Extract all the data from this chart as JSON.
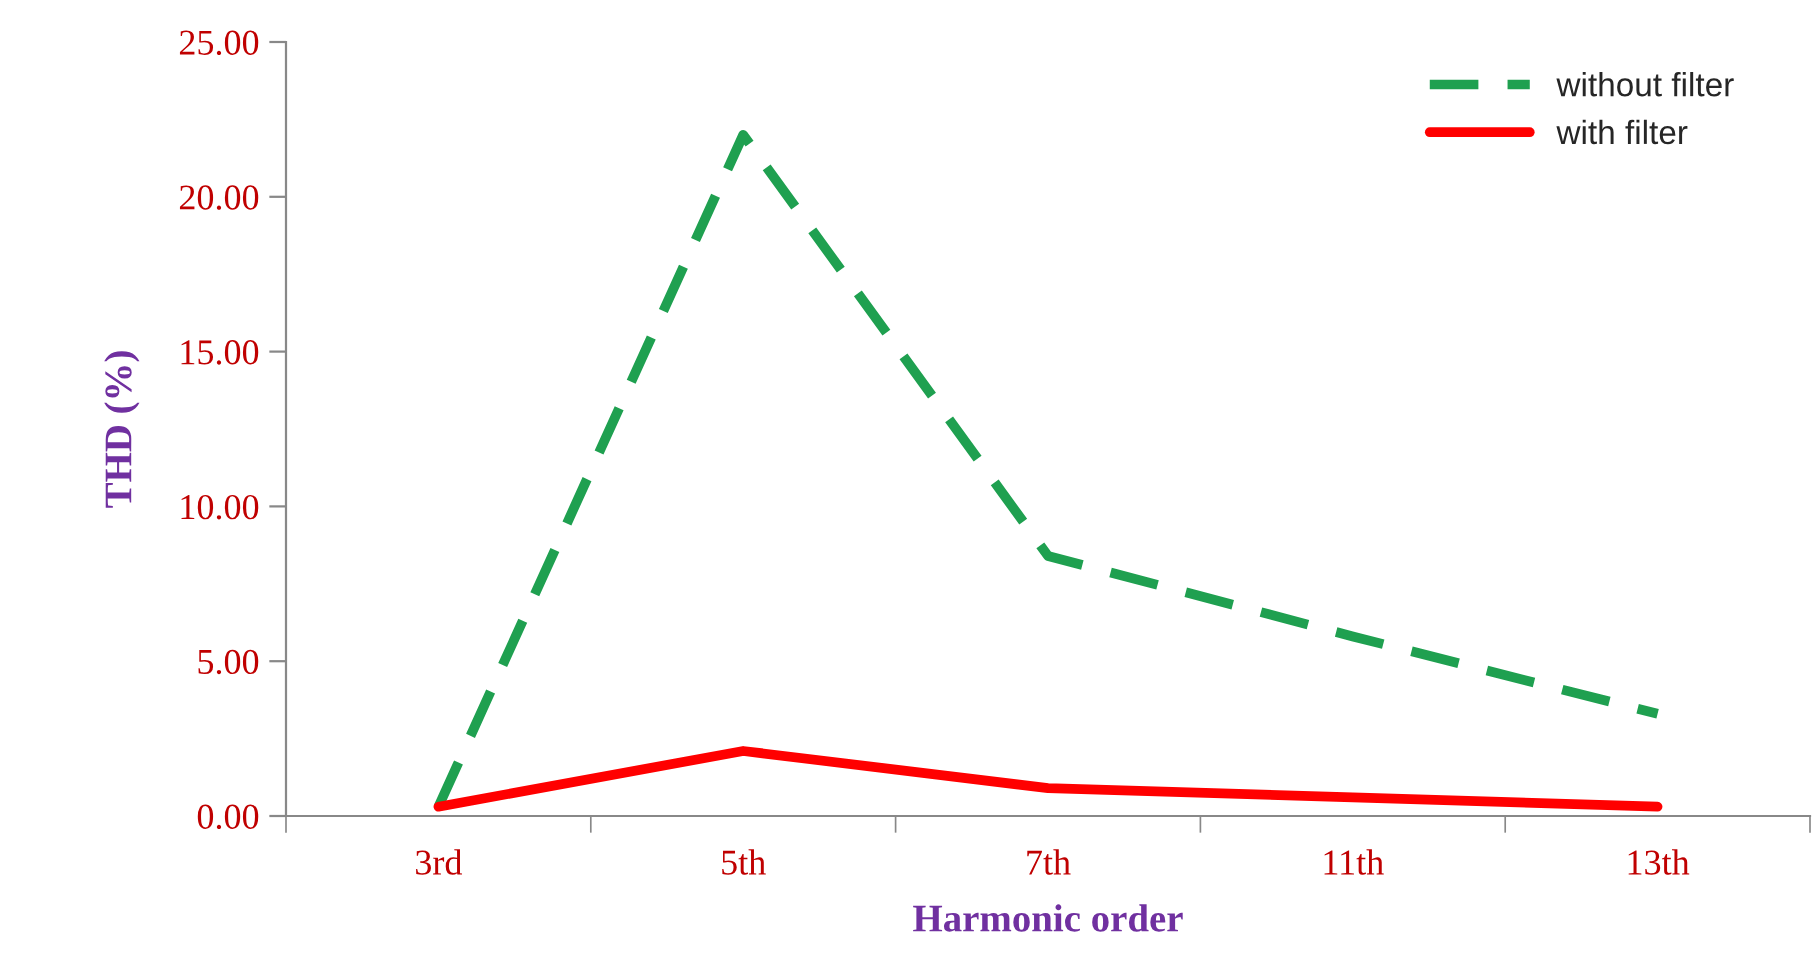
{
  "chart_data": {
    "type": "line",
    "xlabel": "Harmonic order",
    "ylabel": "THD (%)",
    "categories": [
      "3rd",
      "5th",
      "7th",
      "11th",
      "13th"
    ],
    "series": [
      {
        "name": "without filter",
        "color": "#1fa050",
        "line_style": "dashed",
        "values": [
          0.3,
          22.0,
          8.4,
          5.8,
          3.3
        ]
      },
      {
        "name": "with filter",
        "color": "#ff0000",
        "line_style": "solid",
        "values": [
          0.3,
          2.1,
          0.9,
          0.6,
          0.3
        ]
      }
    ],
    "ylim": [
      0,
      25
    ],
    "yticks": [
      {
        "value": 0,
        "label": "0.00"
      },
      {
        "value": 5,
        "label": "5.00"
      },
      {
        "value": 10,
        "label": "10.00"
      },
      {
        "value": 15,
        "label": "15.00"
      },
      {
        "value": 20,
        "label": "20.00"
      },
      {
        "value": 25,
        "label": "25.00"
      }
    ],
    "grid": false,
    "legend": "top right",
    "marker": "none"
  }
}
